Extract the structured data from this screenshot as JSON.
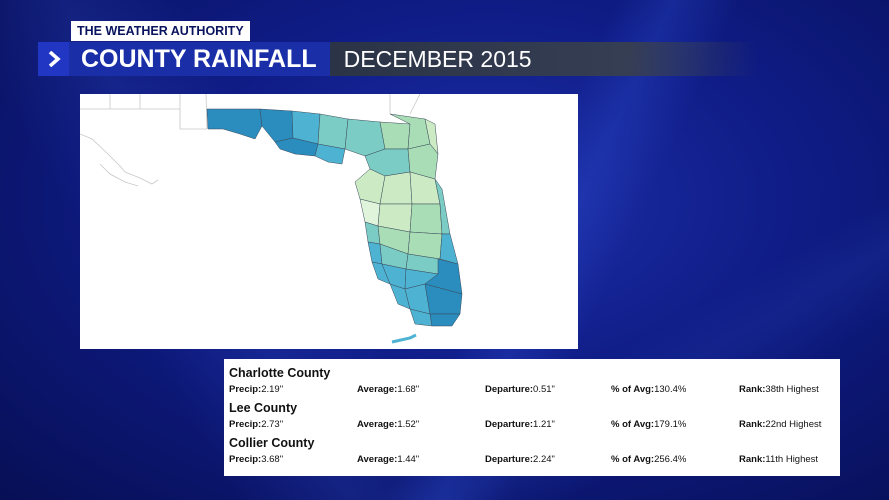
{
  "header": {
    "brand": "THE WEATHER AUTHORITY",
    "title": "COUNTY RAINFALL",
    "subtitle": "DECEMBER 2015",
    "chevron_icon": "chevron-right-icon"
  },
  "colors": {
    "accent": "#1a2ea8",
    "map_dark_blue": "#2b8cbe",
    "map_blue": "#4eb3d3",
    "map_teal": "#7bccc4",
    "map_light_green": "#ccebc5"
  },
  "labels": {
    "precip": "Precip:",
    "average": "Average:",
    "departure": "Departure:",
    "pct_avg": "% of Avg:",
    "rank": "Rank:"
  },
  "counties": [
    {
      "name": "Charlotte County",
      "precip": "2.19\"",
      "average": "1.68\"",
      "departure": "0.51\"",
      "pct_avg": "130.4%",
      "rank": "38th Highest"
    },
    {
      "name": "Lee County",
      "precip": "2.73\"",
      "average": "1.52\"",
      "departure": "1.21\"",
      "pct_avg": "179.1%",
      "rank": "22nd Highest"
    },
    {
      "name": "Collier County",
      "precip": "3.68\"",
      "average": "1.44\"",
      "departure": "2.24\"",
      "pct_avg": "256.4%",
      "rank": "11th Highest"
    }
  ]
}
